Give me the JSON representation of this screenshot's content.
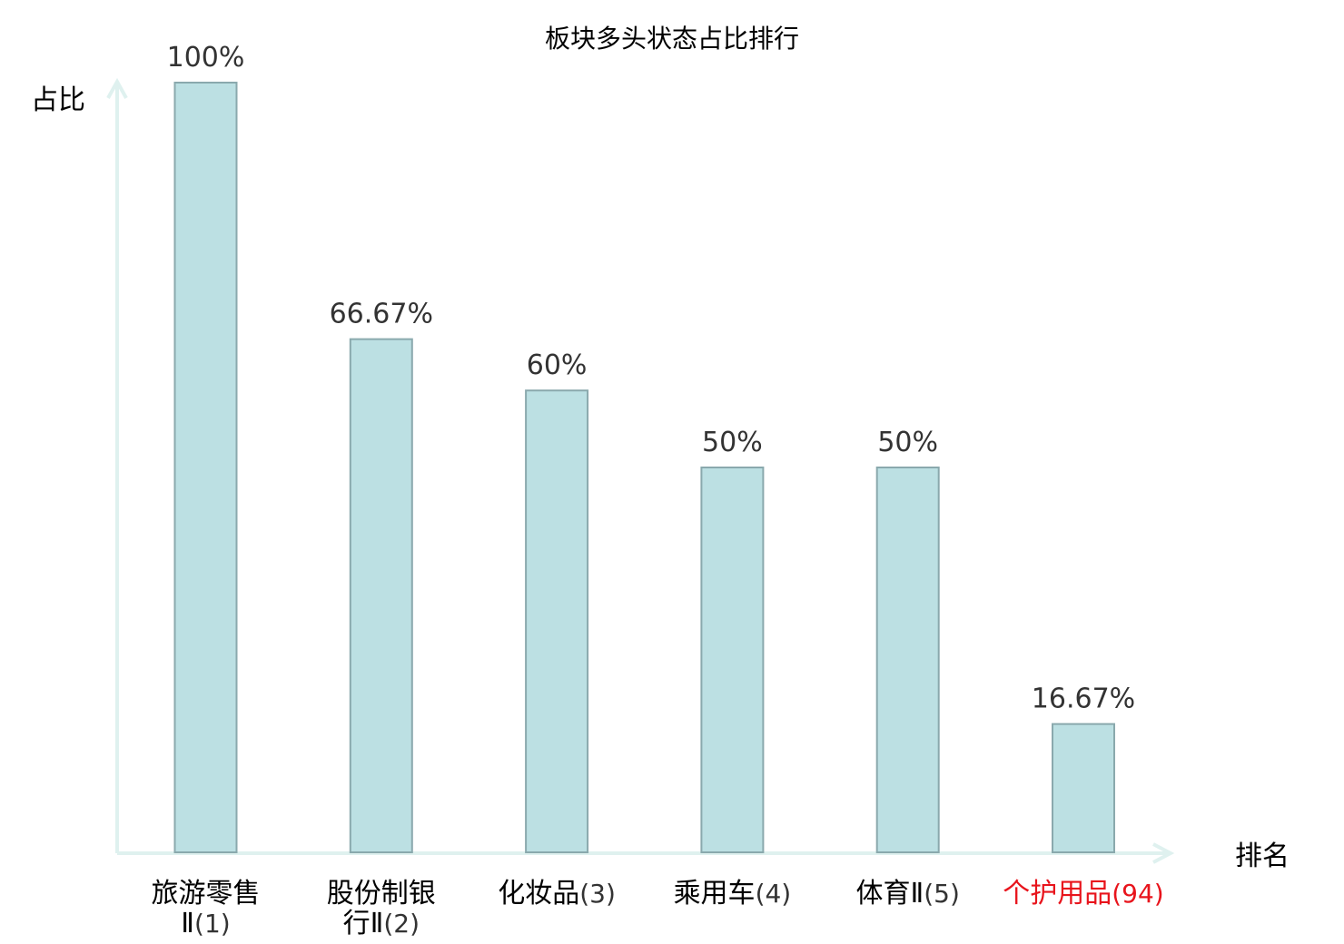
{
  "chart_data": {
    "type": "bar",
    "title": "板块多头状态占比排行",
    "ylabel": "占比",
    "xlabel": "排名",
    "ylim": [
      0,
      100
    ],
    "grid": false,
    "legend": "none",
    "categories": [
      {
        "lines": [
          {
            "name": "旅游零售"
          },
          {
            "name": "Ⅱ",
            "rank": "(1)"
          }
        ]
      },
      {
        "lines": [
          {
            "name": "股份制银"
          },
          {
            "name": "行Ⅱ",
            "rank": "(2)"
          }
        ]
      },
      {
        "lines": [
          {
            "name": "化妆品",
            "rank": "(3)"
          }
        ]
      },
      {
        "lines": [
          {
            "name": "乘用车",
            "rank": "(4)"
          }
        ]
      },
      {
        "lines": [
          {
            "name": "体育Ⅱ",
            "rank": "(5)"
          }
        ]
      },
      {
        "lines": [
          {
            "name": "个护用品",
            "rank": "(94)"
          }
        ],
        "highlight": true
      }
    ],
    "values": [
      100,
      66.67,
      60,
      50,
      50,
      16.67
    ],
    "data_labels": [
      "100%",
      "66.67%",
      "60%",
      "50%",
      "50%",
      "16.67%"
    ],
    "colors": {
      "bar_fill": "#bce0e3",
      "bar_stroke": "#8aa9ad",
      "axis": "#dff1ef",
      "text": "#000000",
      "rank_text": "#333333",
      "data_label": "#333333",
      "highlight": "#e8141c"
    }
  }
}
